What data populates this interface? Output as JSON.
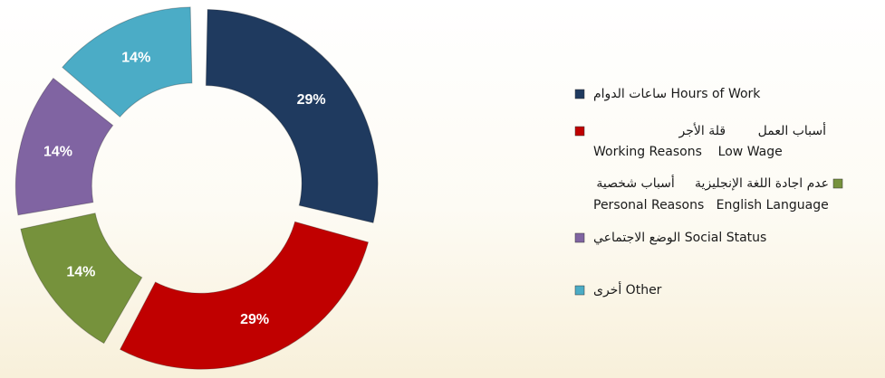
{
  "chart_data": {
    "type": "donut",
    "categories": [
      [
        "ساعات الدوام Hours of Work"
      ],
      [
        "أسباب العمل        قلة الأجر",
        "Working Reasons    Low Wage"
      ],
      [
        "عدم اجادة اللغة الإنجليزية     أسباب شخصية",
        "Personal Reasons   English Language"
      ],
      [
        "الوضع الاجتماعي Social Status"
      ],
      [
        "أخرى Other"
      ]
    ],
    "values": [
      29,
      29,
      14,
      14,
      14
    ],
    "value_labels": [
      "29%",
      "29%",
      "14%",
      "14%",
      "14%"
    ],
    "colors": [
      "#1f3a5f",
      "#c00000",
      "#76923c",
      "#8064a2",
      "#4bacc6"
    ]
  }
}
